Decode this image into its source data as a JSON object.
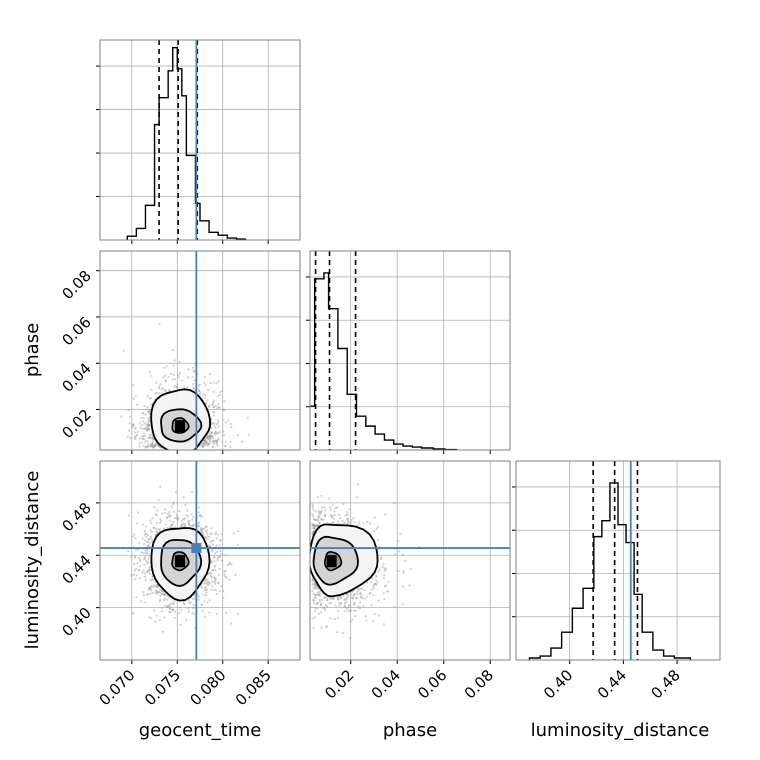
{
  "chart_data": {
    "type": "corner",
    "parameters": [
      "geocent_time",
      "phase",
      "luminosity_distance"
    ],
    "axis_labels": {
      "geocent_time": "geocent_time",
      "phase": "phase",
      "luminosity_distance": "luminosity_distance"
    },
    "ranges": {
      "geocent_time": [
        0.0665,
        0.0885
      ],
      "phase": [
        0.0025,
        0.0885
      ],
      "luminosity_distance": [
        0.36,
        0.512
      ]
    },
    "ticks": {
      "geocent_time": [
        0.07,
        0.075,
        0.08,
        0.085
      ],
      "phase": [
        0.02,
        0.04,
        0.06,
        0.08
      ],
      "luminosity_distance": [
        0.4,
        0.44,
        0.48
      ]
    },
    "tick_labels": {
      "geocent_time": [
        "0.070",
        "0.075",
        "0.080",
        "0.085"
      ],
      "phase": [
        "0.02",
        "0.04",
        "0.06",
        "0.08"
      ],
      "luminosity_distance": [
        "0.40",
        "0.44",
        "0.48"
      ]
    },
    "injection": {
      "geocent_time": 0.0771,
      "phase": null,
      "luminosity_distance": 0.4455
    },
    "quantiles": {
      "geocent_time": [
        0.073,
        0.0751,
        0.0772
      ],
      "phase": [
        0.0049,
        0.0109,
        0.0221
      ],
      "luminosity_distance": [
        0.4175,
        0.4335,
        0.4505
      ]
    },
    "histograms": {
      "geocent_time": {
        "edges": [
          0.0695,
          0.0705,
          0.0715,
          0.0725,
          0.073,
          0.074,
          0.0745,
          0.075,
          0.0755,
          0.076,
          0.077,
          0.0775,
          0.0785,
          0.0795,
          0.0805,
          0.0815,
          0.0825
        ],
        "counts": [
          2,
          6,
          18,
          60,
          74,
          88,
          100,
          89,
          75,
          44,
          19,
          10,
          4,
          2.5,
          1,
          0.5
        ],
        "ymax": 104
      },
      "phase": {
        "edges": [
          0.002,
          0.0045,
          0.0085,
          0.0105,
          0.0145,
          0.0185,
          0.0225,
          0.0265,
          0.0305,
          0.0345,
          0.0385,
          0.0425,
          0.0465,
          0.0505,
          0.0555,
          0.0605,
          0.0655
        ],
        "counts": [
          22,
          86,
          89,
          71,
          51,
          28,
          17,
          12,
          8,
          5,
          3,
          2,
          1.5,
          1,
          0.5,
          0.2
        ],
        "ymax": 100
      },
      "luminosity_distance": {
        "edges": [
          0.37,
          0.378,
          0.386,
          0.394,
          0.402,
          0.41,
          0.418,
          0.424,
          0.43,
          0.436,
          0.442,
          0.448,
          0.454,
          0.462,
          0.47,
          0.478,
          0.49
        ],
        "counts": [
          1,
          2,
          6,
          14,
          26,
          36,
          62,
          70,
          89,
          68,
          59,
          33,
          14,
          5,
          2,
          1
        ],
        "ymax": 100
      }
    },
    "contours_2d": {
      "phase_vs_geocent_time": {
        "center": [
          0.0753,
          0.0128
        ],
        "levels": [
          {
            "rx": 0.0032,
            "ry_up": 0.0165,
            "ry_down": 0.0115
          },
          {
            "rx": 0.0022,
            "ry_up": 0.0075,
            "ry_down": 0.0065
          },
          {
            "rx": 0.0009,
            "ry_up": 0.0035,
            "ry_down": 0.003
          }
        ]
      },
      "luminosity_distance_vs_geocent_time": {
        "center": [
          0.0753,
          0.4355
        ],
        "levels": [
          {
            "rx": 0.0032,
            "ry_up": 0.027,
            "ry_down": 0.028
          },
          {
            "rx": 0.0022,
            "ry_up": 0.017,
            "ry_down": 0.018
          },
          {
            "rx": 0.0009,
            "ry_up": 0.007,
            "ry_down": 0.007
          }
        ]
      },
      "luminosity_distance_vs_phase": {
        "center": [
          0.0118,
          0.4355
        ],
        "levels": [
          {
            "rx_left": 0.0095,
            "rx_right": 0.02,
            "ry_up": 0.03,
            "ry_down": 0.025
          },
          {
            "rx_left": 0.008,
            "rx_right": 0.011,
            "ry_up": 0.019,
            "ry_down": 0.017
          },
          {
            "rx_left": 0.003,
            "rx_right": 0.004,
            "ry_up": 0.007,
            "ry_down": 0.007
          }
        ]
      }
    },
    "grid": true,
    "colors": {
      "line": "#000000",
      "injection": "#4682b4",
      "grid": "#b0b0b0",
      "scatter": "#9a9a9a",
      "axes_edge": "#808080"
    }
  }
}
